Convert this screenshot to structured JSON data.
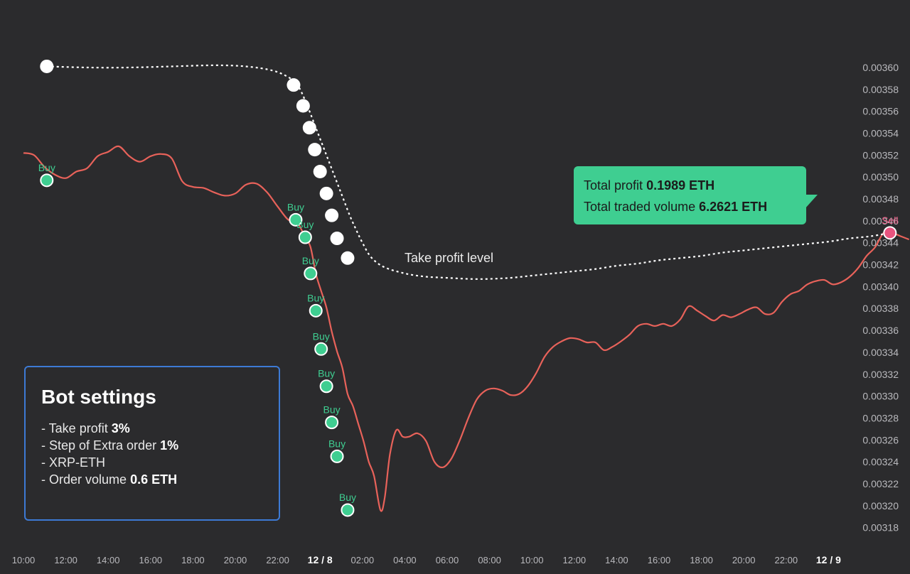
{
  "chart_data": {
    "type": "line",
    "title": "",
    "xlabel": "",
    "ylabel": "",
    "ylim": [
      0.003175,
      0.003625
    ],
    "y_ticks": [
      "0.00360",
      "0.00358",
      "0.00356",
      "0.00354",
      "0.00352",
      "0.00350",
      "0.00348",
      "0.00346",
      "0.00344",
      "0.00342",
      "0.00340",
      "0.00338",
      "0.00336",
      "0.00334",
      "0.00332",
      "0.00330",
      "0.00328",
      "0.00326",
      "0.00324",
      "0.00322",
      "0.00320",
      "0.00318"
    ],
    "x_ticks": [
      {
        "label": "10:00",
        "bold": false
      },
      {
        "label": "12:00",
        "bold": false
      },
      {
        "label": "14:00",
        "bold": false
      },
      {
        "label": "16:00",
        "bold": false
      },
      {
        "label": "18:00",
        "bold": false
      },
      {
        "label": "20:00",
        "bold": false
      },
      {
        "label": "22:00",
        "bold": false
      },
      {
        "label": "12 / 8",
        "bold": true
      },
      {
        "label": "02:00",
        "bold": false
      },
      {
        "label": "04:00",
        "bold": false
      },
      {
        "label": "06:00",
        "bold": false
      },
      {
        "label": "08:00",
        "bold": false
      },
      {
        "label": "10:00",
        "bold": false
      },
      {
        "label": "12:00",
        "bold": false
      },
      {
        "label": "14:00",
        "bold": false
      },
      {
        "label": "16:00",
        "bold": false
      },
      {
        "label": "18:00",
        "bold": false
      },
      {
        "label": "20:00",
        "bold": false
      },
      {
        "label": "22:00",
        "bold": false
      },
      {
        "label": "12 / 9",
        "bold": true
      }
    ],
    "price_series": {
      "color": "#e8625a",
      "points": [
        [
          0,
          0.003522
        ],
        [
          0.5,
          0.00352
        ],
        [
          1,
          0.003509
        ],
        [
          1.5,
          0.003502
        ],
        [
          2,
          0.003499
        ],
        [
          2.5,
          0.003505
        ],
        [
          3,
          0.003508
        ],
        [
          3.5,
          0.003519
        ],
        [
          4,
          0.003523
        ],
        [
          4.5,
          0.003528
        ],
        [
          5,
          0.003519
        ],
        [
          5.5,
          0.003514
        ],
        [
          6,
          0.003519
        ],
        [
          6.5,
          0.003521
        ],
        [
          7,
          0.003517
        ],
        [
          7.5,
          0.003496
        ],
        [
          8,
          0.003491
        ],
        [
          8.5,
          0.00349
        ],
        [
          9,
          0.003486
        ],
        [
          9.5,
          0.003483
        ],
        [
          10,
          0.003485
        ],
        [
          10.5,
          0.003493
        ],
        [
          11,
          0.003494
        ],
        [
          11.5,
          0.003486
        ],
        [
          12,
          0.003473
        ],
        [
          12.5,
          0.003461
        ],
        [
          12.85,
          0.003461
        ],
        [
          13.3,
          0.003445
        ],
        [
          13.55,
          0.003436
        ],
        [
          13.8,
          0.003412
        ],
        [
          14.05,
          0.003396
        ],
        [
          14.3,
          0.003381
        ],
        [
          14.55,
          0.003359
        ],
        [
          14.8,
          0.003341
        ],
        [
          15.05,
          0.003326
        ],
        [
          15.3,
          0.003302
        ],
        [
          15.55,
          0.003291
        ],
        [
          15.8,
          0.003275
        ],
        [
          16.05,
          0.003259
        ],
        [
          16.3,
          0.00324
        ],
        [
          16.55,
          0.003227
        ],
        [
          16.85,
          0.003196
        ],
        [
          17.05,
          0.003207
        ],
        [
          17.3,
          0.003247
        ],
        [
          17.6,
          0.003269
        ],
        [
          17.9,
          0.003263
        ],
        [
          18.2,
          0.003263
        ],
        [
          18.6,
          0.003266
        ],
        [
          19,
          0.003259
        ],
        [
          19.4,
          0.00324
        ],
        [
          19.8,
          0.003235
        ],
        [
          20.2,
          0.003243
        ],
        [
          20.6,
          0.00326
        ],
        [
          21,
          0.00328
        ],
        [
          21.4,
          0.003297
        ],
        [
          21.8,
          0.003305
        ],
        [
          22.2,
          0.003307
        ],
        [
          22.6,
          0.003305
        ],
        [
          23,
          0.003301
        ],
        [
          23.4,
          0.003302
        ],
        [
          23.8,
          0.003309
        ],
        [
          24.2,
          0.003321
        ],
        [
          24.6,
          0.003336
        ],
        [
          25,
          0.003345
        ],
        [
          25.4,
          0.00335
        ],
        [
          25.8,
          0.003353
        ],
        [
          26.2,
          0.003352
        ],
        [
          26.6,
          0.003349
        ],
        [
          27,
          0.003349
        ],
        [
          27.4,
          0.003342
        ],
        [
          27.8,
          0.003345
        ],
        [
          28.2,
          0.00335
        ],
        [
          28.6,
          0.003356
        ],
        [
          29,
          0.003364
        ],
        [
          29.4,
          0.003366
        ],
        [
          29.8,
          0.003364
        ],
        [
          30.2,
          0.003366
        ],
        [
          30.6,
          0.003364
        ],
        [
          31,
          0.00337
        ],
        [
          31.4,
          0.003382
        ],
        [
          31.8,
          0.003378
        ],
        [
          32.2,
          0.003373
        ],
        [
          32.6,
          0.003369
        ],
        [
          33,
          0.003374
        ],
        [
          33.4,
          0.003372
        ],
        [
          33.8,
          0.003375
        ],
        [
          34.2,
          0.003379
        ],
        [
          34.6,
          0.003381
        ],
        [
          35,
          0.003375
        ],
        [
          35.4,
          0.003376
        ],
        [
          35.8,
          0.003386
        ],
        [
          36.2,
          0.003393
        ],
        [
          36.6,
          0.003396
        ],
        [
          37,
          0.003402
        ],
        [
          37.4,
          0.003405
        ],
        [
          37.8,
          0.003406
        ],
        [
          38.2,
          0.003402
        ],
        [
          38.6,
          0.003404
        ],
        [
          39,
          0.003409
        ],
        [
          39.4,
          0.003417
        ],
        [
          39.8,
          0.003428
        ],
        [
          40.2,
          0.003436
        ],
        [
          40.6,
          0.003449
        ],
        [
          41,
          0.003449
        ],
        [
          41.4,
          0.003446
        ],
        [
          41.8,
          0.003443
        ]
      ]
    },
    "take_profit_series": {
      "name": "Take profit level",
      "color": "#ffffff",
      "points": [
        [
          1.1,
          0.003601
        ],
        [
          3,
          0.0036
        ],
        [
          5,
          0.0036
        ],
        [
          7,
          0.003601
        ],
        [
          9,
          0.003602
        ],
        [
          10.5,
          0.003601
        ],
        [
          11.8,
          0.003597
        ],
        [
          12.6,
          0.00359
        ],
        [
          13,
          0.003582
        ],
        [
          13.4,
          0.003565
        ],
        [
          13.8,
          0.003545
        ],
        [
          14.2,
          0.003525
        ],
        [
          14.6,
          0.003505
        ],
        [
          15,
          0.003485
        ],
        [
          15.4,
          0.003465
        ],
        [
          15.7,
          0.003452
        ],
        [
          16,
          0.00344
        ],
        [
          16.4,
          0.003427
        ],
        [
          17,
          0.003418
        ],
        [
          18,
          0.003412
        ],
        [
          19,
          0.003409
        ],
        [
          20,
          0.003408
        ],
        [
          21,
          0.003407
        ],
        [
          22,
          0.003407
        ],
        [
          23,
          0.003408
        ],
        [
          24,
          0.00341
        ],
        [
          25,
          0.003412
        ],
        [
          26,
          0.003414
        ],
        [
          27,
          0.003416
        ],
        [
          28,
          0.003419
        ],
        [
          29,
          0.003421
        ],
        [
          30,
          0.003424
        ],
        [
          31,
          0.003426
        ],
        [
          32,
          0.003428
        ],
        [
          33,
          0.003431
        ],
        [
          34,
          0.003433
        ],
        [
          35,
          0.003435
        ],
        [
          36,
          0.003437
        ],
        [
          37,
          0.003439
        ],
        [
          38,
          0.003441
        ],
        [
          39,
          0.003444
        ],
        [
          40,
          0.003446
        ],
        [
          40.9,
          0.003449
        ]
      ],
      "dots": [
        [
          1.1,
          0.003601
        ],
        [
          12.75,
          0.003584
        ],
        [
          13.2,
          0.003565
        ],
        [
          13.5,
          0.003545
        ],
        [
          13.75,
          0.003525
        ],
        [
          14.0,
          0.003505
        ],
        [
          14.3,
          0.003485
        ],
        [
          14.55,
          0.003465
        ],
        [
          14.8,
          0.003444
        ],
        [
          15.3,
          0.003426
        ]
      ]
    },
    "buy_orders": {
      "label": "Buy",
      "color": "#3fce91",
      "points": [
        [
          1.1,
          0.003497
        ],
        [
          12.85,
          0.003461
        ],
        [
          13.3,
          0.003445
        ],
        [
          13.55,
          0.003412
        ],
        [
          13.8,
          0.003378
        ],
        [
          14.05,
          0.003343
        ],
        [
          14.3,
          0.003309
        ],
        [
          14.55,
          0.003276
        ],
        [
          14.8,
          0.003245
        ],
        [
          15.3,
          0.003196
        ]
      ]
    },
    "sell_order": {
      "label": "Sell",
      "color": "#e8547f",
      "point": [
        40.9,
        0.003449
      ]
    },
    "annotation": "Take profit level"
  },
  "profit_box": {
    "line1_label": "Total profit",
    "line1_value": "0.1989 ETH",
    "line2_label": "Total traded volume",
    "line2_value": "6.2621 ETH"
  },
  "bot_settings": {
    "title": "Bot settings",
    "items": [
      {
        "label": "- Take profit",
        "value": "3%"
      },
      {
        "label": "- Step of Extra order",
        "value": "1%"
      },
      {
        "label": "- XRP-ETH",
        "value": ""
      },
      {
        "label": "- Order volume",
        "value": "0.6 ETH"
      }
    ]
  }
}
